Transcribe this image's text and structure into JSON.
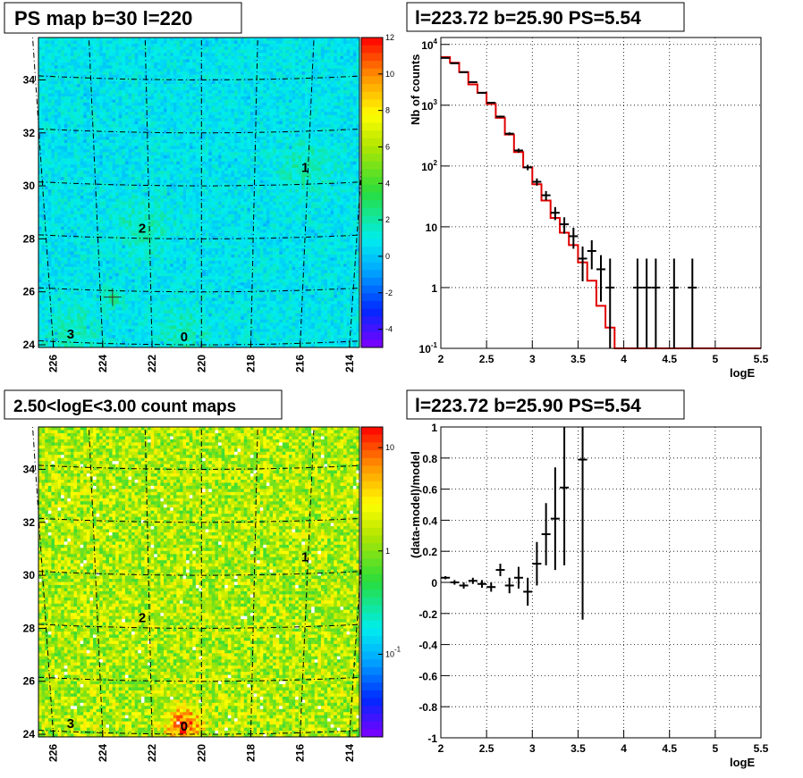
{
  "chart_data": [
    {
      "type": "heatmap",
      "title": "PS map b=30 l=220",
      "x_ticks": [
        "226",
        "224",
        "222",
        "220",
        "218",
        "216",
        "214"
      ],
      "y_ticks": [
        "24",
        "26",
        "28",
        "30",
        "32",
        "34"
      ],
      "colorbar_ticks": [
        "12",
        "10",
        "8",
        "6",
        "4",
        "2",
        "0",
        "-2",
        "-4"
      ],
      "xlim": [
        226.6,
        213.6
      ],
      "ylim": [
        23.9,
        35.6
      ],
      "zlim": [
        -5,
        12
      ],
      "markers": [
        {
          "label": "0",
          "l": 220.7,
          "b": 24.3
        },
        {
          "label": "1",
          "l": 215.8,
          "b": 30.7
        },
        {
          "label": "2",
          "l": 222.4,
          "b": 28.4
        },
        {
          "label": "3",
          "l": 225.3,
          "b": 24.4
        }
      ]
    },
    {
      "type": "line",
      "title": "l=223.72 b=25.90 PS=5.54",
      "xlabel": "logE",
      "ylabel": "Nb of counts",
      "log_y": true,
      "xlim": [
        2,
        5.5
      ],
      "ylim": [
        0.1,
        13000
      ],
      "x_ticks": [
        "2",
        "2.5",
        "3",
        "3.5",
        "4",
        "4.5",
        "5",
        "5.5"
      ],
      "y_ticks": [
        "10^4",
        "10^3",
        "10^2",
        "10",
        "1",
        "10^-1"
      ],
      "grid": true,
      "data_x": [
        2.05,
        2.15,
        2.25,
        2.35,
        2.45,
        2.55,
        2.65,
        2.75,
        2.85,
        2.95,
        3.05,
        3.15,
        3.25,
        3.35,
        3.45,
        3.55,
        3.65,
        3.75,
        3.85,
        4.15,
        4.25,
        4.35,
        4.55,
        4.75
      ],
      "data_y": [
        6000,
        4900,
        3500,
        2400,
        1600,
        1100,
        650,
        340,
        180,
        95,
        55,
        33,
        17,
        11,
        7,
        3,
        4,
        2,
        1,
        1,
        1,
        1,
        1,
        1
      ],
      "model_x_edges": [
        2.0,
        2.1,
        2.2,
        2.3,
        2.4,
        2.5,
        2.6,
        2.7,
        2.8,
        2.9,
        3.0,
        3.1,
        3.2,
        3.3,
        3.4,
        3.5,
        3.6,
        3.7,
        3.8,
        3.9,
        5.5
      ],
      "model_y": [
        6200,
        5000,
        3500,
        2200,
        1600,
        1050,
        620,
        330,
        170,
        95,
        50,
        27,
        14,
        8,
        5,
        2.6,
        1.3,
        0.5,
        0.22,
        0.1
      ]
    },
    {
      "type": "heatmap",
      "title": "2.50<logE<3.00 count maps",
      "x_ticks": [
        "226",
        "224",
        "222",
        "220",
        "218",
        "216",
        "214"
      ],
      "y_ticks": [
        "24",
        "26",
        "28",
        "30",
        "32",
        "34"
      ],
      "colorbar_ticks": [
        "10",
        "1",
        "10^-1"
      ],
      "xlim": [
        226.6,
        213.6
      ],
      "ylim": [
        23.9,
        35.6
      ],
      "log_z": true,
      "markers": [
        {
          "label": "0",
          "l": 220.7,
          "b": 24.3
        },
        {
          "label": "1",
          "l": 215.8,
          "b": 30.7
        },
        {
          "label": "2",
          "l": 222.4,
          "b": 28.4
        },
        {
          "label": "3",
          "l": 225.3,
          "b": 24.4
        }
      ]
    },
    {
      "type": "scatter",
      "title": "l=223.72 b=25.90 PS=5.54",
      "xlabel": "logE",
      "ylabel": "(data-model)/model",
      "xlim": [
        2,
        5.5
      ],
      "ylim": [
        -1,
        1
      ],
      "x_ticks": [
        "2",
        "2.5",
        "3",
        "3.5",
        "4",
        "4.5",
        "5",
        "5.5"
      ],
      "y_ticks": [
        "1",
        "0.8",
        "0.6",
        "0.4",
        "0.2",
        "0",
        "-0.2",
        "-0.4",
        "-0.6",
        "-0.8",
        "-1"
      ],
      "grid": true,
      "x": [
        2.05,
        2.15,
        2.25,
        2.35,
        2.45,
        2.55,
        2.65,
        2.75,
        2.85,
        2.95,
        3.05,
        3.15,
        3.25,
        3.35,
        3.55
      ],
      "y": [
        0.03,
        0.0,
        -0.02,
        0.01,
        -0.01,
        -0.03,
        0.08,
        -0.02,
        0.03,
        -0.06,
        0.12,
        0.31,
        0.41,
        0.61,
        0.79
      ],
      "err": [
        0.01,
        0.015,
        0.02,
        0.02,
        0.025,
        0.03,
        0.04,
        0.05,
        0.07,
        0.09,
        0.14,
        0.2,
        0.33,
        0.5,
        1.03
      ]
    }
  ]
}
